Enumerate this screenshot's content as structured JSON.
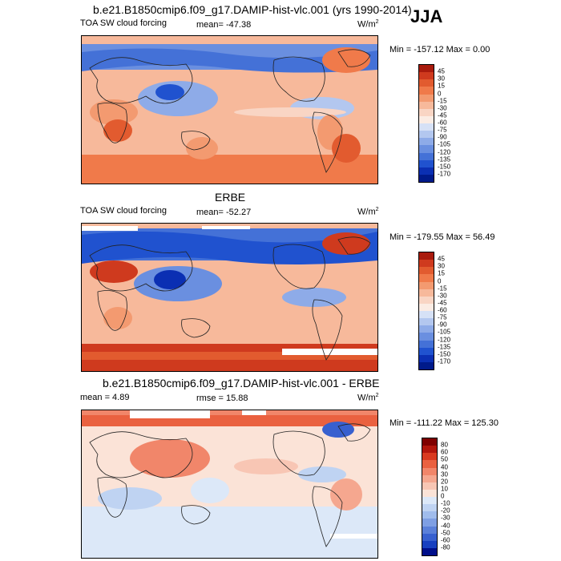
{
  "season": "JJA",
  "units": "W/m2",
  "panels": [
    {
      "id": "model",
      "title": "b.e21.B1850cmip6.f09_g17.DAMIP-hist-vlc.001 (yrs 1990-2014)",
      "left_label": "TOA SW cloud forcing",
      "center_label": "mean= -47.38",
      "minmax_label": "Min = -157.12 Max =   0.00",
      "levels": [
        "45",
        "30",
        "15",
        "0",
        "-15",
        "-30",
        "-45",
        "-60",
        "-75",
        "-90",
        "-105",
        "-120",
        "-135",
        "-150",
        "-170"
      ],
      "colors": [
        "#a91b0d",
        "#cf3a1e",
        "#e25b2f",
        "#f07a4a",
        "#f39a70",
        "#f7b99b",
        "#f9d5c4",
        "#fbece4",
        "#d6e1f6",
        "#b3c7ef",
        "#8eabe8",
        "#6a8fe0",
        "#4471d7",
        "#2052cf",
        "#0b2fb3",
        "#001a8a"
      ]
    },
    {
      "id": "obs",
      "title": "ERBE",
      "left_label": "TOA SW cloud forcing",
      "center_label": "mean= -52.27",
      "minmax_label": "Min = -179.55 Max =  56.49",
      "levels": [
        "45",
        "30",
        "15",
        "0",
        "-15",
        "-30",
        "-45",
        "-60",
        "-75",
        "-90",
        "-105",
        "-120",
        "-135",
        "-150",
        "-170"
      ],
      "colors": [
        "#a91b0d",
        "#cf3a1e",
        "#e25b2f",
        "#f07a4a",
        "#f39a70",
        "#f7b99b",
        "#f9d5c4",
        "#fbece4",
        "#d6e1f6",
        "#b3c7ef",
        "#8eabe8",
        "#6a8fe0",
        "#4471d7",
        "#2052cf",
        "#0b2fb3",
        "#001a8a"
      ]
    },
    {
      "id": "diff",
      "title": "b.e21.B1850cmip6.f09_g17.DAMIP-hist-vlc.001 - ERBE",
      "left_label": "mean =   4.89",
      "center_label": "rmse =  15.88",
      "minmax_label": "Min = -111.22 Max = 125.30",
      "levels": [
        "80",
        "60",
        "50",
        "40",
        "30",
        "20",
        "10",
        "0",
        "-10",
        "-20",
        "-30",
        "-40",
        "-50",
        "-60",
        "-80"
      ],
      "colors": [
        "#7f0000",
        "#b2160c",
        "#d93a20",
        "#ea6140",
        "#f1866a",
        "#f5a78f",
        "#f8c6b4",
        "#fbe3d7",
        "#dce8f8",
        "#bfd3f2",
        "#a0bcec",
        "#7f9fe3",
        "#5b80d9",
        "#3860cf",
        "#1840c0",
        "#000f8a"
      ]
    }
  ]
}
